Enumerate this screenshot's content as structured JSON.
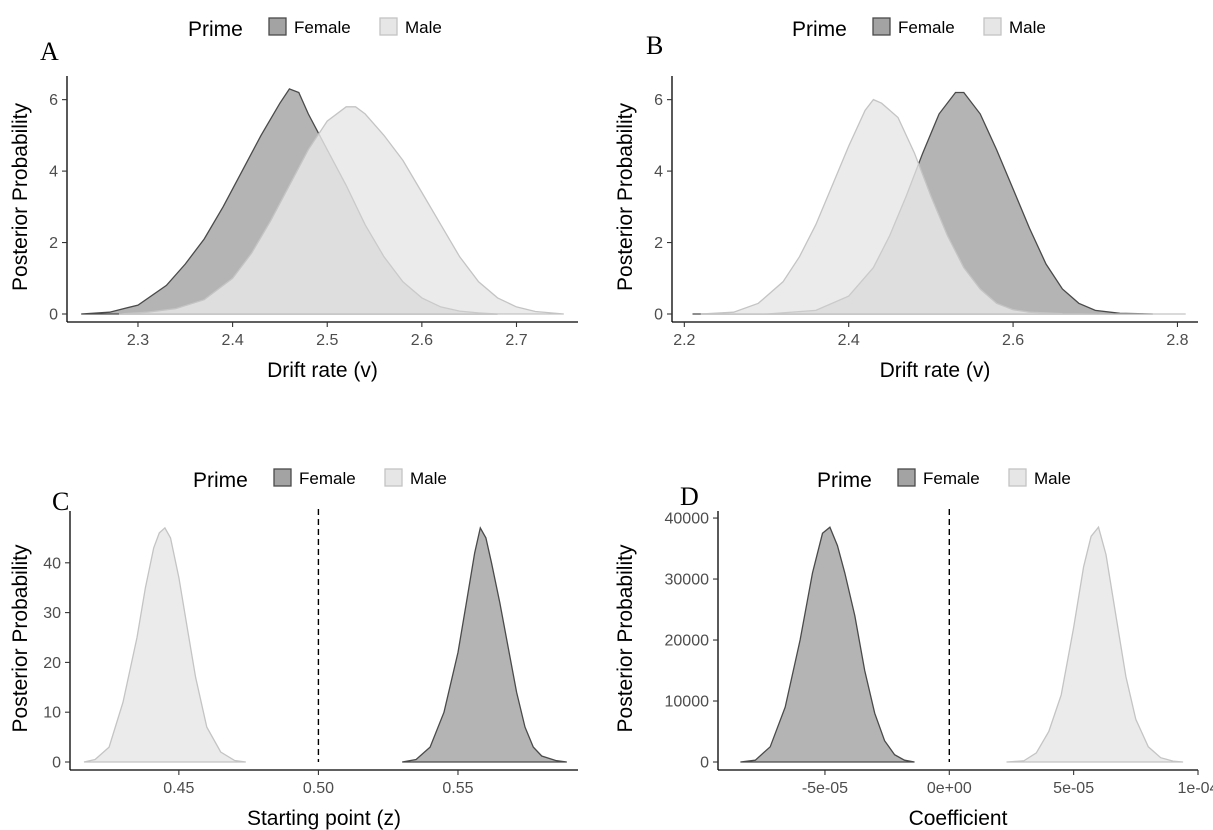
{
  "legend": {
    "title": "Prime",
    "entries": [
      {
        "name": "Female",
        "fill": "#a3a3a3",
        "stroke": "#4a4a4a"
      },
      {
        "name": "Male",
        "fill": "#e6e6e6",
        "stroke": "#c4c4c4"
      }
    ]
  },
  "chart_data": [
    {
      "panel": "A",
      "type": "area",
      "subtype": "density",
      "xlabel": "Drift rate (v)",
      "ylabel": "Posterior Probability",
      "xlim": [
        2.225,
        2.765
      ],
      "ylim": [
        0,
        6.55
      ],
      "xticks": [
        2.3,
        2.4,
        2.5,
        2.6,
        2.7
      ],
      "xtick_labels": [
        "2.3",
        "2.4",
        "2.5",
        "2.6",
        "2.7"
      ],
      "yticks": [
        0,
        2,
        4,
        6
      ],
      "ytick_labels": [
        "0",
        "2",
        "4",
        "6"
      ],
      "series": [
        {
          "name": "Female",
          "x": [
            2.24,
            2.27,
            2.3,
            2.33,
            2.35,
            2.37,
            2.39,
            2.41,
            2.43,
            2.45,
            2.46,
            2.47,
            2.48,
            2.5,
            2.52,
            2.54,
            2.56,
            2.58,
            2.6,
            2.62,
            2.64,
            2.66,
            2.68
          ],
          "y": [
            0,
            0.05,
            0.25,
            0.8,
            1.4,
            2.1,
            3.0,
            4.0,
            5.0,
            5.9,
            6.3,
            6.2,
            5.6,
            4.6,
            3.6,
            2.5,
            1.6,
            0.9,
            0.45,
            0.2,
            0.08,
            0.03,
            0
          ]
        },
        {
          "name": "Male",
          "x": [
            2.28,
            2.31,
            2.34,
            2.37,
            2.4,
            2.42,
            2.44,
            2.46,
            2.48,
            2.5,
            2.52,
            2.53,
            2.54,
            2.56,
            2.58,
            2.6,
            2.62,
            2.64,
            2.66,
            2.68,
            2.7,
            2.72,
            2.75
          ],
          "y": [
            0,
            0.05,
            0.15,
            0.4,
            1.0,
            1.7,
            2.6,
            3.6,
            4.6,
            5.4,
            5.8,
            5.8,
            5.6,
            5.0,
            4.3,
            3.4,
            2.5,
            1.6,
            0.9,
            0.45,
            0.2,
            0.07,
            0
          ]
        }
      ]
    },
    {
      "panel": "B",
      "type": "area",
      "subtype": "density",
      "xlabel": "Drift rate (v)",
      "ylabel": "Posterior Probability",
      "xlim": [
        2.185,
        2.825
      ],
      "ylim": [
        0,
        6.55
      ],
      "xticks": [
        2.2,
        2.4,
        2.6,
        2.8
      ],
      "xtick_labels": [
        "2.2",
        "2.4",
        "2.6",
        "2.8"
      ],
      "yticks": [
        0,
        2,
        4,
        6
      ],
      "ytick_labels": [
        "0",
        "2",
        "4",
        "6"
      ],
      "series": [
        {
          "name": "Female",
          "x": [
            2.21,
            2.3,
            2.36,
            2.4,
            2.43,
            2.45,
            2.47,
            2.49,
            2.51,
            2.53,
            2.54,
            2.56,
            2.58,
            2.6,
            2.62,
            2.64,
            2.66,
            2.68,
            2.7,
            2.73,
            2.77
          ],
          "y": [
            0,
            0,
            0.1,
            0.5,
            1.3,
            2.2,
            3.3,
            4.5,
            5.6,
            6.2,
            6.2,
            5.6,
            4.6,
            3.5,
            2.4,
            1.4,
            0.7,
            0.3,
            0.1,
            0.02,
            0
          ]
        },
        {
          "name": "Male",
          "x": [
            2.22,
            2.26,
            2.29,
            2.32,
            2.34,
            2.36,
            2.38,
            2.4,
            2.42,
            2.43,
            2.44,
            2.46,
            2.48,
            2.5,
            2.52,
            2.54,
            2.56,
            2.58,
            2.6,
            2.62,
            2.66,
            2.72,
            2.81
          ],
          "y": [
            0,
            0.05,
            0.3,
            0.9,
            1.6,
            2.5,
            3.6,
            4.7,
            5.7,
            6.0,
            5.9,
            5.5,
            4.5,
            3.3,
            2.2,
            1.3,
            0.7,
            0.3,
            0.12,
            0.05,
            0.01,
            0,
            0
          ]
        }
      ]
    },
    {
      "panel": "C",
      "type": "area",
      "subtype": "density",
      "xlabel": "Starting point (z)",
      "ylabel": "Posterior Probability",
      "xlim": [
        0.411,
        0.593
      ],
      "ylim": [
        0,
        49.6
      ],
      "xticks": [
        0.45,
        0.5,
        0.55
      ],
      "xtick_labels": [
        "0.45",
        "0.50",
        "0.55"
      ],
      "yticks": [
        0,
        10,
        20,
        30,
        40
      ],
      "ytick_labels": [
        "0",
        "10",
        "20",
        "30",
        "40"
      ],
      "reference_line_x": 0.5,
      "series": [
        {
          "name": "Female",
          "x": [
            0.53,
            0.535,
            0.54,
            0.545,
            0.55,
            0.553,
            0.556,
            0.558,
            0.56,
            0.562,
            0.565,
            0.568,
            0.571,
            0.574,
            0.577,
            0.58,
            0.585,
            0.589
          ],
          "y": [
            0,
            0.5,
            3,
            10,
            22,
            32,
            42,
            47,
            45,
            40,
            32,
            23,
            14,
            7,
            3,
            1.2,
            0.3,
            0
          ]
        },
        {
          "name": "Male",
          "x": [
            0.416,
            0.42,
            0.425,
            0.43,
            0.435,
            0.438,
            0.441,
            0.443,
            0.445,
            0.447,
            0.45,
            0.453,
            0.456,
            0.46,
            0.465,
            0.47,
            0.474
          ],
          "y": [
            0,
            0.5,
            3,
            12,
            25,
            35,
            43,
            46,
            47,
            45,
            37,
            27,
            17,
            7,
            2,
            0.3,
            0
          ]
        }
      ]
    },
    {
      "panel": "D",
      "type": "area",
      "subtype": "density",
      "xlabel": "Coefficient",
      "ylabel": "Posterior Probability",
      "xlim": [
        -9.3e-05,
        0.0001
      ],
      "ylim": [
        0,
        40500
      ],
      "xticks": [
        -5e-05,
        0,
        5e-05,
        0.0001
      ],
      "xtick_labels": [
        "-5e-05",
        "0e+00",
        "5e-05",
        "1e-04"
      ],
      "yticks": [
        0,
        10000,
        20000,
        30000,
        40000
      ],
      "ytick_labels": [
        "0",
        "10000",
        "20000",
        "30000",
        "40000"
      ],
      "reference_line_x": 0,
      "series": [
        {
          "name": "Female",
          "x": [
            -8.4e-05,
            -7.8e-05,
            -7.2e-05,
            -6.6e-05,
            -6e-05,
            -5.5e-05,
            -5.1e-05,
            -4.8e-05,
            -4.5e-05,
            -4.2e-05,
            -3.8e-05,
            -3.4e-05,
            -3e-05,
            -2.6e-05,
            -2.2e-05,
            -1.8e-05,
            -1.4e-05
          ],
          "y": [
            0,
            300,
            2500,
            9000,
            20000,
            31000,
            37500,
            38500,
            35500,
            31000,
            24000,
            15000,
            8000,
            3500,
            1200,
            300,
            0
          ]
        },
        {
          "name": "Male",
          "x": [
            2.3e-05,
            3e-05,
            3.5e-05,
            4e-05,
            4.5e-05,
            5e-05,
            5.4e-05,
            5.7e-05,
            6e-05,
            6.3e-05,
            6.7e-05,
            7.1e-05,
            7.5e-05,
            8e-05,
            8.5e-05,
            9e-05,
            9.4e-05
          ],
          "y": [
            0,
            200,
            1500,
            5000,
            11000,
            22000,
            32000,
            37000,
            38500,
            34000,
            24000,
            14000,
            7000,
            2500,
            700,
            150,
            0
          ]
        }
      ]
    }
  ]
}
